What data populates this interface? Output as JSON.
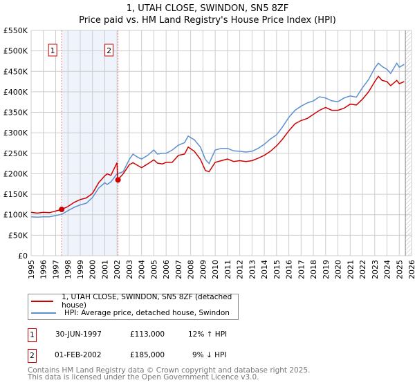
{
  "title_line1": "1, UTAH CLOSE, SWINDON, SN5 8ZF",
  "title_line2": "Price paid vs. HM Land Registry's House Price Index (HPI)",
  "colors": {
    "property": "#cc0000",
    "hpi": "#5b8fd0",
    "shade": "#eef3fc"
  },
  "chart_data": {
    "type": "line",
    "title": "1, UTAH CLOSE, SWINDON, SN5 8ZF — Price paid vs. HM Land Registry's House Price Index (HPI)",
    "xlim": [
      1995,
      2026
    ],
    "ylim": [
      0,
      550000
    ],
    "x_ticks": [
      "1995",
      "1996",
      "1997",
      "1998",
      "1999",
      "2000",
      "2001",
      "2002",
      "2003",
      "2004",
      "2005",
      "2006",
      "2007",
      "2008",
      "2009",
      "2010",
      "2011",
      "2012",
      "2013",
      "2014",
      "2015",
      "2016",
      "2017",
      "2018",
      "2019",
      "2020",
      "2021",
      "2022",
      "2023",
      "2024",
      "2025",
      "2026"
    ],
    "y_ticks": [
      {
        "v": 0,
        "label": "£0"
      },
      {
        "v": 50000,
        "label": "£50K"
      },
      {
        "v": 100000,
        "label": "£100K"
      },
      {
        "v": 150000,
        "label": "£150K"
      },
      {
        "v": 200000,
        "label": "£200K"
      },
      {
        "v": 250000,
        "label": "£250K"
      },
      {
        "v": 300000,
        "label": "£300K"
      },
      {
        "v": 350000,
        "label": "£350K"
      },
      {
        "v": 400000,
        "label": "£400K"
      },
      {
        "v": 450000,
        "label": "£450K"
      },
      {
        "v": 500000,
        "label": "£500K"
      },
      {
        "v": 550000,
        "label": "£550K"
      }
    ],
    "grid": true,
    "series": [
      {
        "name": "1, UTAH CLOSE, SWINDON, SN5 8ZF (detached house)",
        "color": "#cc0000",
        "x": [
          1995,
          1995.5,
          1996,
          1996.5,
          1997,
          1997.5,
          1998,
          1998.5,
          1999,
          1999.5,
          2000,
          2000.5,
          2001,
          2001.2,
          2001.5,
          2002,
          2002.05,
          2002.5,
          2003,
          2003.3,
          2003.7,
          2004,
          2004.5,
          2005,
          2005.3,
          2005.7,
          2006,
          2006.5,
          2007,
          2007.5,
          2007.8,
          2008.3,
          2008.8,
          2009.2,
          2009.5,
          2010,
          2010.5,
          2011,
          2011.5,
          2012,
          2012.5,
          2013,
          2013.5,
          2014,
          2014.5,
          2015,
          2015.5,
          2016,
          2016.5,
          2017,
          2017.5,
          2018,
          2018.5,
          2019,
          2019.5,
          2020,
          2020.5,
          2021,
          2021.5,
          2022,
          2022.5,
          2023,
          2023.3,
          2023.6,
          2024,
          2024.3,
          2024.8,
          2025,
          2025.4
        ],
        "y": [
          106000,
          104000,
          106000,
          105000,
          109000,
          113000,
          120000,
          130000,
          137000,
          141000,
          152000,
          178000,
          195000,
          200000,
          196000,
          227000,
          185000,
          200000,
          222000,
          227000,
          220000,
          215000,
          224000,
          234000,
          226000,
          224000,
          228000,
          228000,
          245000,
          248000,
          265000,
          255000,
          235000,
          208000,
          205000,
          228000,
          232000,
          236000,
          230000,
          232000,
          230000,
          232000,
          238000,
          245000,
          255000,
          268000,
          285000,
          305000,
          322000,
          330000,
          335000,
          345000,
          355000,
          362000,
          355000,
          355000,
          360000,
          370000,
          368000,
          382000,
          400000,
          425000,
          438000,
          428000,
          425000,
          415000,
          428000,
          420000,
          425000
        ]
      },
      {
        "name": "HPI: Average price, detached house, Swindon",
        "color": "#5b8fd0",
        "x": [
          1995,
          1995.5,
          1996,
          1996.5,
          1997,
          1997.5,
          1998,
          1998.5,
          1999,
          1999.5,
          2000,
          2000.5,
          2001,
          2001.2,
          2001.5,
          2002,
          2002.5,
          2003,
          2003.3,
          2003.7,
          2004,
          2004.5,
          2005,
          2005.3,
          2005.7,
          2006,
          2006.5,
          2007,
          2007.5,
          2007.8,
          2008.3,
          2008.8,
          2009.2,
          2009.5,
          2010,
          2010.5,
          2011,
          2011.5,
          2012,
          2012.5,
          2013,
          2013.5,
          2014,
          2014.5,
          2015,
          2015.5,
          2016,
          2016.5,
          2017,
          2017.5,
          2018,
          2018.5,
          2019,
          2019.5,
          2020,
          2020.5,
          2021,
          2021.5,
          2022,
          2022.5,
          2023,
          2023.3,
          2023.6,
          2024,
          2024.3,
          2024.8,
          2025,
          2025.4
        ],
        "y": [
          95000,
          94000,
          95000,
          95000,
          98000,
          101000,
          110000,
          118000,
          124000,
          128000,
          142000,
          165000,
          178000,
          174000,
          180000,
          200000,
          205000,
          235000,
          248000,
          240000,
          236000,
          245000,
          258000,
          248000,
          250000,
          250000,
          258000,
          270000,
          276000,
          292000,
          283000,
          265000,
          235000,
          225000,
          258000,
          262000,
          262000,
          256000,
          255000,
          253000,
          255000,
          262000,
          272000,
          285000,
          295000,
          315000,
          338000,
          355000,
          365000,
          373000,
          378000,
          388000,
          385000,
          378000,
          376000,
          385000,
          390000,
          387000,
          410000,
          430000,
          458000,
          470000,
          462000,
          455000,
          445000,
          470000,
          460000,
          467000
        ]
      }
    ],
    "annotations": [
      {
        "id": "1",
        "x": 1997.49,
        "y": 113000,
        "date": "30-JUN-1997",
        "price": "£113,000",
        "hpi": "12% ↑ HPI"
      },
      {
        "id": "2",
        "x": 2002.08,
        "y": 185000,
        "date": "01-FEB-2002",
        "price": "£185,000",
        "hpi": "9% ↓ HPI"
      }
    ],
    "forecast_start": 2025.5,
    "legend_position": "below"
  },
  "legend": {
    "property": "1, UTAH CLOSE, SWINDON, SN5 8ZF (detached house)",
    "hpi": "HPI: Average price, detached house, Swindon"
  },
  "footer_line1": "Contains HM Land Registry data © Crown copyright and database right 2025.",
  "footer_line2": "This data is licensed under the Open Government Licence v3.0."
}
